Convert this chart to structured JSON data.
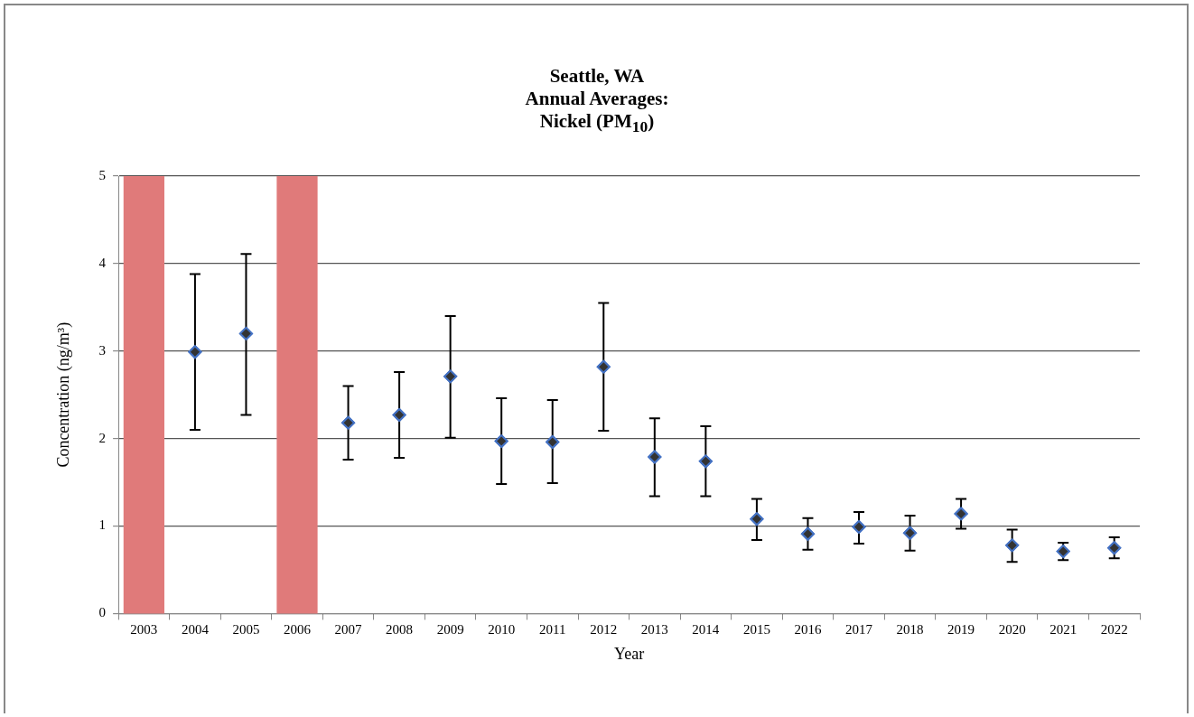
{
  "chart_data": {
    "type": "scatter",
    "title": "Seattle, WA\nAnnual Averages:\nNickel (PM$_{10}$)",
    "xlabel": "Year",
    "ylabel": "Concentration (ng/m³)",
    "categories": [
      "2003",
      "2004",
      "2005",
      "2006",
      "2007",
      "2008",
      "2009",
      "2010",
      "2011",
      "2012",
      "2013",
      "2014",
      "2015",
      "2016",
      "2017",
      "2018",
      "2019",
      "2020",
      "2021",
      "2022"
    ],
    "series": [
      {
        "color": "#333333",
        "values": [
          null,
          2.99,
          3.2,
          null,
          2.18,
          2.27,
          2.71,
          1.97,
          1.96,
          2.82,
          1.79,
          1.74,
          1.08,
          0.91,
          0.99,
          0.92,
          1.14,
          0.78,
          0.71,
          0.75
        ],
        "errors": [
          null,
          [
            2.1,
            3.88
          ],
          [
            2.27,
            4.11
          ],
          null,
          [
            1.76,
            2.6
          ],
          [
            1.78,
            2.76
          ],
          [
            2.01,
            3.4
          ],
          [
            1.48,
            2.46
          ],
          [
            1.49,
            2.44
          ],
          [
            2.09,
            3.55
          ],
          [
            1.34,
            2.23
          ],
          [
            1.34,
            2.14
          ],
          [
            0.84,
            1.31
          ],
          [
            0.73,
            1.09
          ],
          [
            0.8,
            1.16
          ],
          [
            0.72,
            1.12
          ],
          [
            0.97,
            1.31
          ],
          [
            0.59,
            0.96
          ],
          [
            0.61,
            0.81
          ],
          [
            0.63,
            0.87
          ]
        ]
      }
    ],
    "bands": [
      {
        "axis": "x",
        "from": "2003",
        "to": "2003",
        "color": "#e07a7a"
      },
      {
        "axis": "x",
        "from": "2006",
        "to": "2006",
        "color": "#e07a7a"
      }
    ],
    "ylim": [
      0,
      5
    ],
    "yticks": [
      0,
      1,
      2,
      3,
      4,
      5
    ],
    "grid": "y",
    "marker": "diamond",
    "legend": false
  }
}
